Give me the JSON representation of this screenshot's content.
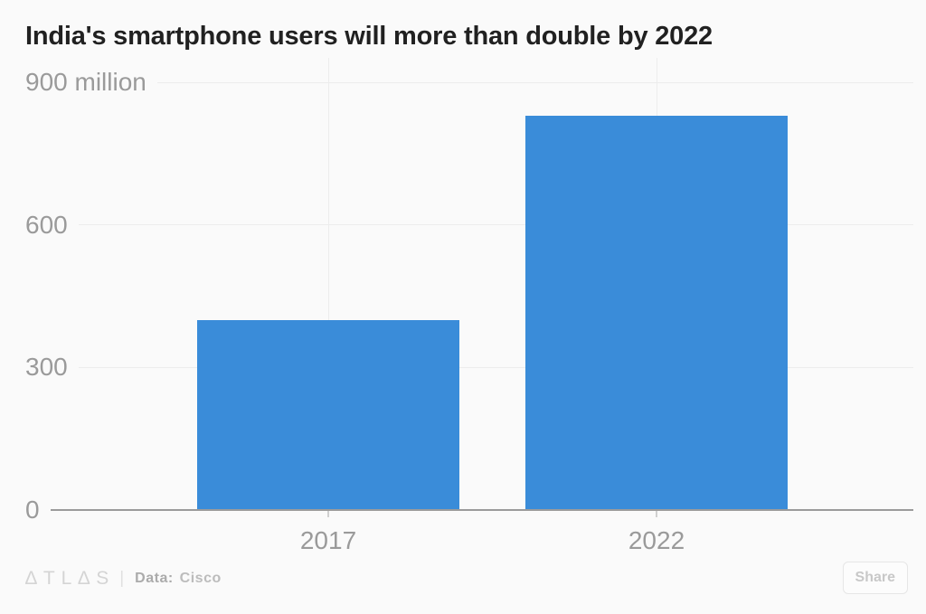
{
  "chart_data": {
    "type": "bar",
    "title": "India's smartphone users will more than double by 2022",
    "categories": [
      "2017",
      "2022"
    ],
    "values": [
      400,
      830
    ],
    "unit": "million smartphone users",
    "xlabel": "",
    "ylabel": "",
    "ylim": [
      0,
      900
    ],
    "yticks": [
      {
        "value": 900,
        "label": "900 million"
      },
      {
        "value": 600,
        "label": "600"
      },
      {
        "value": 300,
        "label": "300"
      },
      {
        "value": 0,
        "label": "0"
      }
    ],
    "grid": "faint horizontal lines at each y tick, faint vertical line at each category center",
    "legend": "none",
    "bar_color": "#3a8cd9"
  },
  "colors": {
    "background": "#fafafa",
    "bar": "#3a8cd9",
    "title_text": "#212121",
    "tick_label_text": "#9a9a9a",
    "gridline": "#ececec",
    "zero_baseline": "#9b9b9b",
    "footer_logo": "#d4d4d4",
    "footer_text": "#ababab"
  },
  "footer": {
    "logo": "∆TL∆S",
    "divider": "|",
    "source_label": "Data:",
    "source_value": "Cisco",
    "share_label": "Share"
  }
}
